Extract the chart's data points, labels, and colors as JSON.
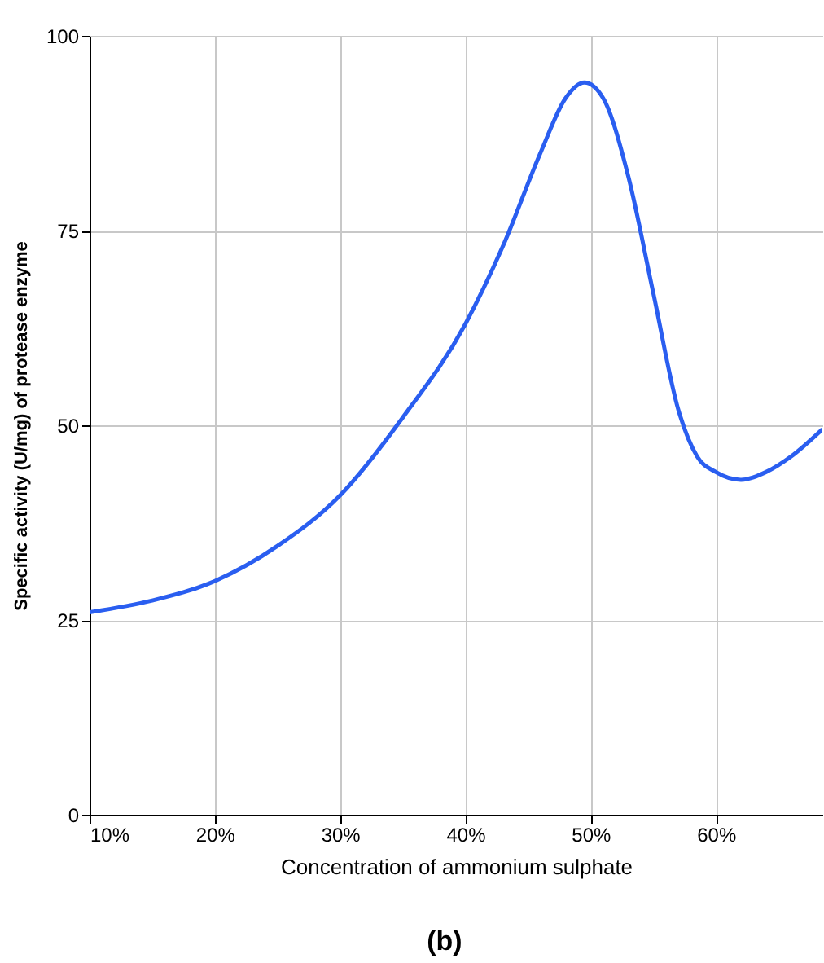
{
  "chart_data": {
    "type": "line",
    "xlabel": "Concentration of ammonium sulphate",
    "ylabel": "Specific activity (U/mg) of protease enzyme",
    "x": [
      10,
      15,
      20,
      25,
      30,
      35,
      40,
      43,
      46,
      48,
      49.5,
      51,
      53,
      55,
      57,
      58.5,
      60,
      62,
      64,
      66,
      68.5
    ],
    "series": [
      {
        "color": "#2a5ef0",
        "values": [
          26,
          27.5,
          30,
          34.5,
          41,
          51,
          63,
          73,
          85,
          92,
          94,
          92,
          82,
          67,
          52,
          46,
          44,
          43,
          44,
          46,
          49.5
        ]
      }
    ],
    "xlim": [
      10,
      68.5
    ],
    "xticks": [
      {
        "value": 10,
        "label": "10%"
      },
      {
        "value": 20,
        "label": "20%"
      },
      {
        "value": 30,
        "label": "30%"
      },
      {
        "value": 40,
        "label": "40%"
      },
      {
        "value": 50,
        "label": "50%"
      },
      {
        "value": 60,
        "label": "60%"
      }
    ],
    "ylim": [
      0,
      100
    ],
    "yticks": [
      0,
      25,
      50,
      75,
      100
    ],
    "grid": true,
    "marker": "none",
    "line_style": "solid",
    "annotations": [
      "(b)"
    ]
  }
}
